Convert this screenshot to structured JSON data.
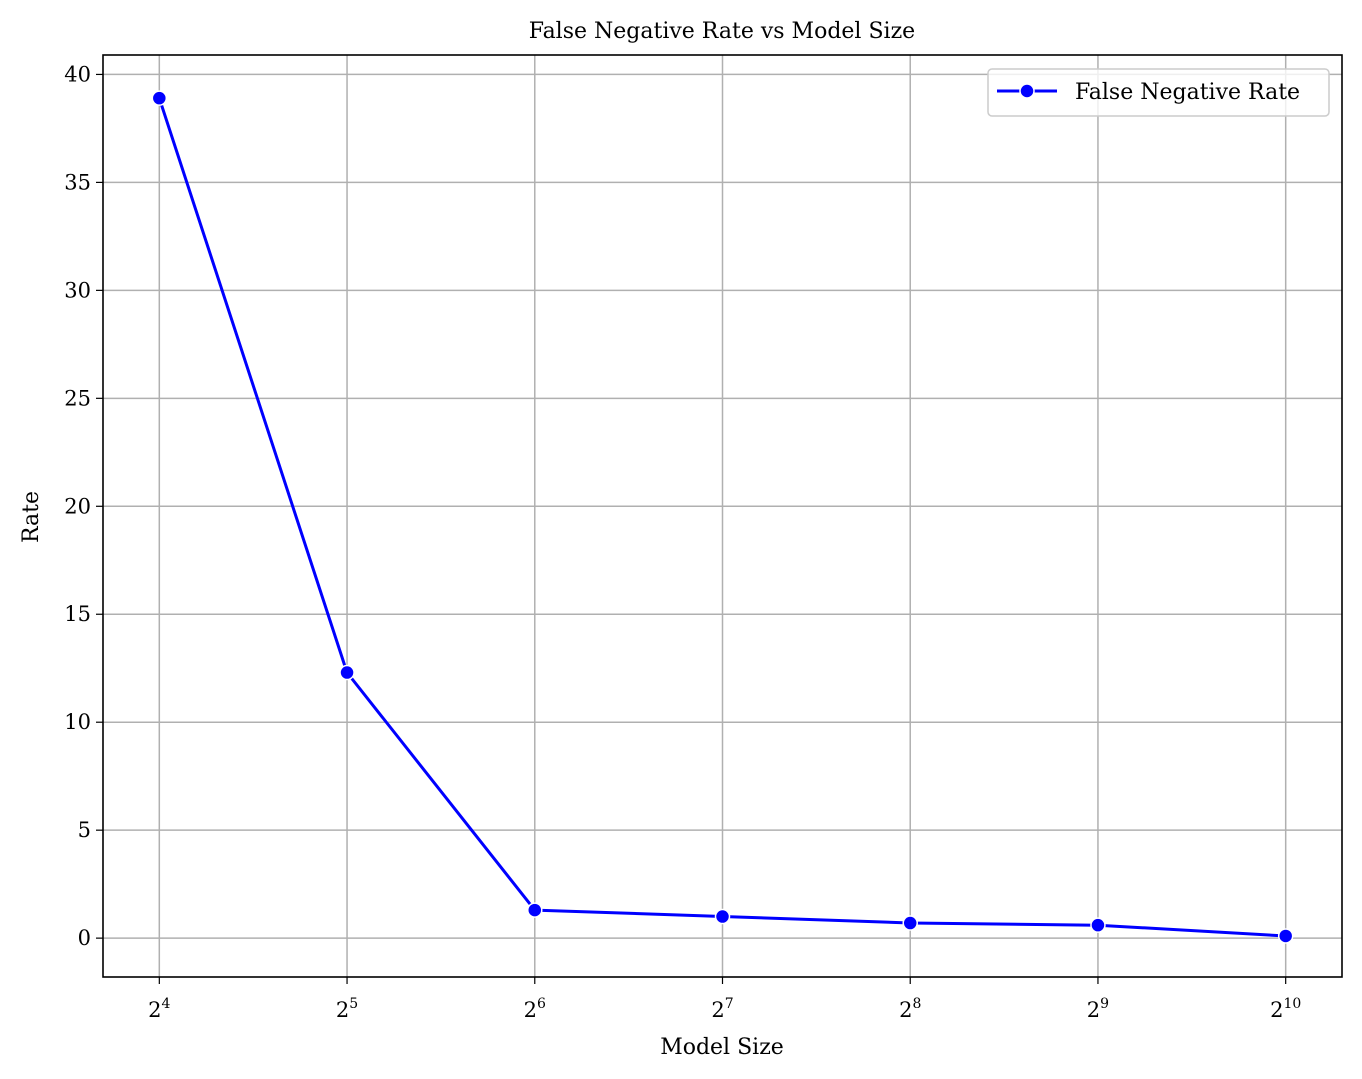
{
  "chart_data": {
    "type": "line",
    "title": "False Negative Rate vs Model Size",
    "xlabel": "Model Size",
    "ylabel": "Rate",
    "x_scale": "log2",
    "x": [
      16,
      32,
      64,
      128,
      256,
      512,
      1024
    ],
    "x_tick_labels": [
      {
        "base": "2",
        "exp": "4"
      },
      {
        "base": "2",
        "exp": "5"
      },
      {
        "base": "2",
        "exp": "6"
      },
      {
        "base": "2",
        "exp": "7"
      },
      {
        "base": "2",
        "exp": "8"
      },
      {
        "base": "2",
        "exp": "9"
      },
      {
        "base": "2",
        "exp": "10"
      }
    ],
    "y_ticks": [
      0,
      5,
      10,
      15,
      20,
      25,
      30,
      35,
      40
    ],
    "ylim": [
      -1.8,
      40.9
    ],
    "grid": true,
    "legend_position": "top-right",
    "series": [
      {
        "name": "False Negative Rate",
        "color": "#0000ff",
        "marker": "circle",
        "values": [
          38.9,
          12.3,
          1.3,
          1.0,
          0.7,
          0.6,
          0.1
        ]
      }
    ]
  }
}
